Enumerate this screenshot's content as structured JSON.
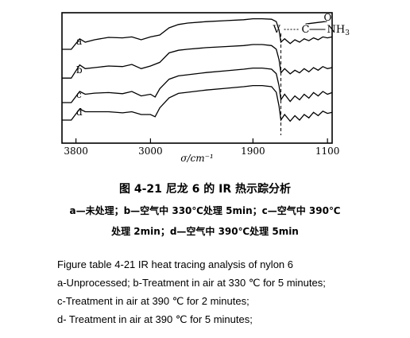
{
  "chart_data": {
    "type": "line",
    "xlabel": "σ/cm⁻¹",
    "x_ticks": [
      3800,
      3000,
      1900,
      1100
    ],
    "xlim": [
      3950,
      1050
    ],
    "grid": false,
    "annotation": {
      "text_left": "V",
      "text_mid": "C",
      "text_o": "O",
      "text_right": "NH",
      "sub": "3",
      "x": 1600
    },
    "series": [
      {
        "name": "a",
        "points": [
          [
            3950,
            0.7
          ],
          [
            3850,
            0.7
          ],
          [
            3760,
            0.48
          ],
          [
            3700,
            0.55
          ],
          [
            3600,
            0.5
          ],
          [
            3450,
            0.45
          ],
          [
            3300,
            0.46
          ],
          [
            3200,
            0.44
          ],
          [
            3100,
            0.5
          ],
          [
            3000,
            0.44
          ],
          [
            2900,
            0.4
          ],
          [
            2800,
            0.25
          ],
          [
            2700,
            0.18
          ],
          [
            2600,
            0.15
          ],
          [
            2400,
            0.12
          ],
          [
            2200,
            0.1
          ],
          [
            2000,
            0.08
          ],
          [
            1900,
            0.06
          ],
          [
            1800,
            0.06
          ],
          [
            1700,
            0.07
          ],
          [
            1650,
            0.12
          ],
          [
            1620,
            0.3
          ],
          [
            1600,
            0.55
          ],
          [
            1560,
            0.48
          ],
          [
            1500,
            0.58
          ],
          [
            1450,
            0.5
          ],
          [
            1400,
            0.55
          ],
          [
            1350,
            0.48
          ],
          [
            1300,
            0.52
          ],
          [
            1250,
            0.46
          ],
          [
            1200,
            0.5
          ],
          [
            1150,
            0.44
          ],
          [
            1100,
            0.46
          ],
          [
            1050,
            0.44
          ]
        ]
      },
      {
        "name": "b",
        "points": [
          [
            3950,
            0.7
          ],
          [
            3850,
            0.7
          ],
          [
            3760,
            0.45
          ],
          [
            3700,
            0.52
          ],
          [
            3600,
            0.5
          ],
          [
            3450,
            0.47
          ],
          [
            3300,
            0.48
          ],
          [
            3200,
            0.44
          ],
          [
            3100,
            0.52
          ],
          [
            3000,
            0.47
          ],
          [
            2900,
            0.4
          ],
          [
            2800,
            0.22
          ],
          [
            2700,
            0.17
          ],
          [
            2600,
            0.15
          ],
          [
            2400,
            0.12
          ],
          [
            2200,
            0.1
          ],
          [
            2000,
            0.08
          ],
          [
            1900,
            0.06
          ],
          [
            1800,
            0.06
          ],
          [
            1700,
            0.08
          ],
          [
            1650,
            0.15
          ],
          [
            1620,
            0.35
          ],
          [
            1600,
            0.6
          ],
          [
            1560,
            0.52
          ],
          [
            1500,
            0.62
          ],
          [
            1450,
            0.55
          ],
          [
            1400,
            0.6
          ],
          [
            1350,
            0.52
          ],
          [
            1300,
            0.58
          ],
          [
            1250,
            0.5
          ],
          [
            1200,
            0.55
          ],
          [
            1150,
            0.48
          ],
          [
            1100,
            0.52
          ],
          [
            1050,
            0.5
          ]
        ]
      },
      {
        "name": "c",
        "points": [
          [
            3950,
            0.7
          ],
          [
            3850,
            0.7
          ],
          [
            3760,
            0.5
          ],
          [
            3700,
            0.55
          ],
          [
            3600,
            0.53
          ],
          [
            3450,
            0.52
          ],
          [
            3300,
            0.54
          ],
          [
            3200,
            0.5
          ],
          [
            3100,
            0.58
          ],
          [
            3000,
            0.55
          ],
          [
            2950,
            0.6
          ],
          [
            2900,
            0.45
          ],
          [
            2800,
            0.28
          ],
          [
            2700,
            0.22
          ],
          [
            2600,
            0.2
          ],
          [
            2400,
            0.16
          ],
          [
            2200,
            0.13
          ],
          [
            2000,
            0.1
          ],
          [
            1900,
            0.08
          ],
          [
            1800,
            0.08
          ],
          [
            1700,
            0.1
          ],
          [
            1650,
            0.18
          ],
          [
            1620,
            0.4
          ],
          [
            1600,
            0.65
          ],
          [
            1560,
            0.55
          ],
          [
            1500,
            0.68
          ],
          [
            1450,
            0.58
          ],
          [
            1400,
            0.65
          ],
          [
            1350,
            0.55
          ],
          [
            1300,
            0.62
          ],
          [
            1250,
            0.52
          ],
          [
            1200,
            0.58
          ],
          [
            1150,
            0.5
          ],
          [
            1100,
            0.55
          ],
          [
            1050,
            0.52
          ]
        ]
      },
      {
        "name": "d",
        "points": [
          [
            3950,
            0.7
          ],
          [
            3850,
            0.7
          ],
          [
            3760,
            0.5
          ],
          [
            3700,
            0.55
          ],
          [
            3600,
            0.55
          ],
          [
            3450,
            0.55
          ],
          [
            3300,
            0.57
          ],
          [
            3200,
            0.55
          ],
          [
            3100,
            0.6
          ],
          [
            3000,
            0.6
          ],
          [
            2950,
            0.64
          ],
          [
            2900,
            0.48
          ],
          [
            2800,
            0.3
          ],
          [
            2700,
            0.22
          ],
          [
            2600,
            0.2
          ],
          [
            2400,
            0.16
          ],
          [
            2200,
            0.13
          ],
          [
            2000,
            0.1
          ],
          [
            1900,
            0.08
          ],
          [
            1800,
            0.08
          ],
          [
            1700,
            0.1
          ],
          [
            1650,
            0.2
          ],
          [
            1620,
            0.45
          ],
          [
            1600,
            0.7
          ],
          [
            1560,
            0.6
          ],
          [
            1500,
            0.72
          ],
          [
            1450,
            0.62
          ],
          [
            1400,
            0.7
          ],
          [
            1350,
            0.6
          ],
          [
            1300,
            0.66
          ],
          [
            1250,
            0.56
          ],
          [
            1200,
            0.62
          ],
          [
            1150,
            0.54
          ],
          [
            1100,
            0.58
          ],
          [
            1050,
            0.56
          ]
        ]
      }
    ]
  },
  "caption_cn": {
    "title": "图 4-21   尼龙 6 的 IR 热示踪分析",
    "line1": "a—未处理；b—空气中 330℃处理 5min；c—空气中 390℃",
    "line2": "处理 2min；d—空气中 390℃处理 5min"
  },
  "caption_en": {
    "line1": "Figure table 4-21 IR heat tracing analysis of nylon 6",
    "line2": "a-Unprocessed;  b-Treatment in air at 330 ℃ for 5 minutes;",
    "line3": "c-Treatment in air at 390 ℃ for 2 minutes;",
    "line4": "d- Treatment in air at 390 ℃ for 5 minutes;"
  }
}
